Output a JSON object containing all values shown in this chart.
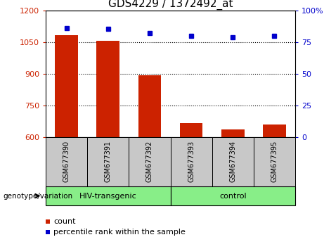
{
  "title": "GDS4229 / 1372492_at",
  "samples": [
    "GSM677390",
    "GSM677391",
    "GSM677392",
    "GSM677393",
    "GSM677394",
    "GSM677395"
  ],
  "counts": [
    1082,
    1058,
    893,
    668,
    635,
    660
  ],
  "percentiles": [
    86,
    85.5,
    82,
    80,
    79,
    80
  ],
  "left_ylim": [
    600,
    1200
  ],
  "right_ylim": [
    0,
    100
  ],
  "left_yticks": [
    600,
    750,
    900,
    1050,
    1200
  ],
  "right_yticks": [
    0,
    25,
    50,
    75,
    100
  ],
  "bar_color": "#cc2200",
  "dot_color": "#0000cc",
  "grid_color": "#000000",
  "group_labels": [
    "HIV-transgenic",
    "control"
  ],
  "group_ranges": [
    [
      0,
      3
    ],
    [
      3,
      6
    ]
  ],
  "group_color": "#88ee88",
  "label_bg_color": "#c8c8c8",
  "genotype_label": "genotype/variation",
  "legend_count": "count",
  "legend_pct": "percentile rank within the sample",
  "title_fontsize": 11,
  "tick_fontsize": 8,
  "label_fontsize": 8
}
